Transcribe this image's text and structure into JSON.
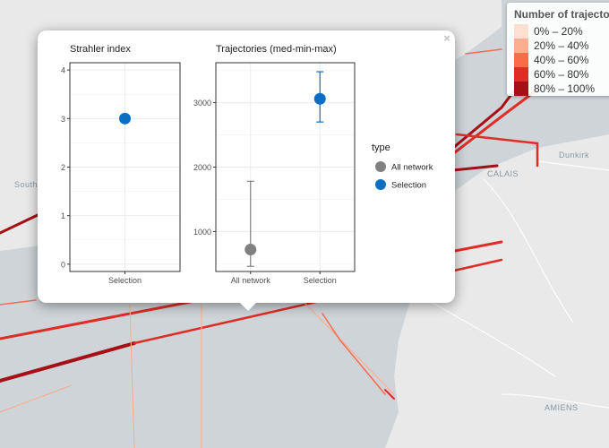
{
  "map": {
    "places": [
      "CALAIS",
      "Dunkirk",
      "South",
      "AMIENS"
    ]
  },
  "legend": {
    "title": "Number of trajecto",
    "items": [
      {
        "label": "0% – 20%",
        "color": "#fde0d2"
      },
      {
        "label": "20% – 40%",
        "color": "#fcae91"
      },
      {
        "label": "40% – 60%",
        "color": "#fb6a4a"
      },
      {
        "label": "60% – 80%",
        "color": "#de2d26"
      },
      {
        "label": "80% – 100%",
        "color": "#a50f15"
      }
    ]
  },
  "popup": {
    "close_label": "×",
    "legend": {
      "title": "type",
      "entries": [
        {
          "name": "All network",
          "color": "#808080"
        },
        {
          "name": "Selection",
          "color": "#0a6fc2"
        }
      ]
    }
  },
  "chart_data": [
    {
      "type": "scatter",
      "title": "Strahler index",
      "categories": [
        "Selection"
      ],
      "y_ticks": [
        "0",
        "1",
        "2",
        "3",
        "4"
      ],
      "ylim": [
        -0.15,
        4.15
      ],
      "series": [
        {
          "name": "Selection",
          "points": [
            {
              "x": "Selection",
              "y": 3
            }
          ]
        }
      ],
      "grid": true
    },
    {
      "type": "scatter",
      "title": "Trajectories (med-min-max)",
      "categories": [
        "All network",
        "Selection"
      ],
      "y_ticks": [
        "1000",
        "2000",
        "3000"
      ],
      "ylim": [
        380,
        3620
      ],
      "series": [
        {
          "name": "All network",
          "points": [
            {
              "x": "All network",
              "y": 720,
              "min": 460,
              "max": 1780
            }
          ]
        },
        {
          "name": "Selection",
          "points": [
            {
              "x": "Selection",
              "y": 3060,
              "min": 2700,
              "max": 3480
            }
          ]
        }
      ],
      "grid": true
    }
  ]
}
